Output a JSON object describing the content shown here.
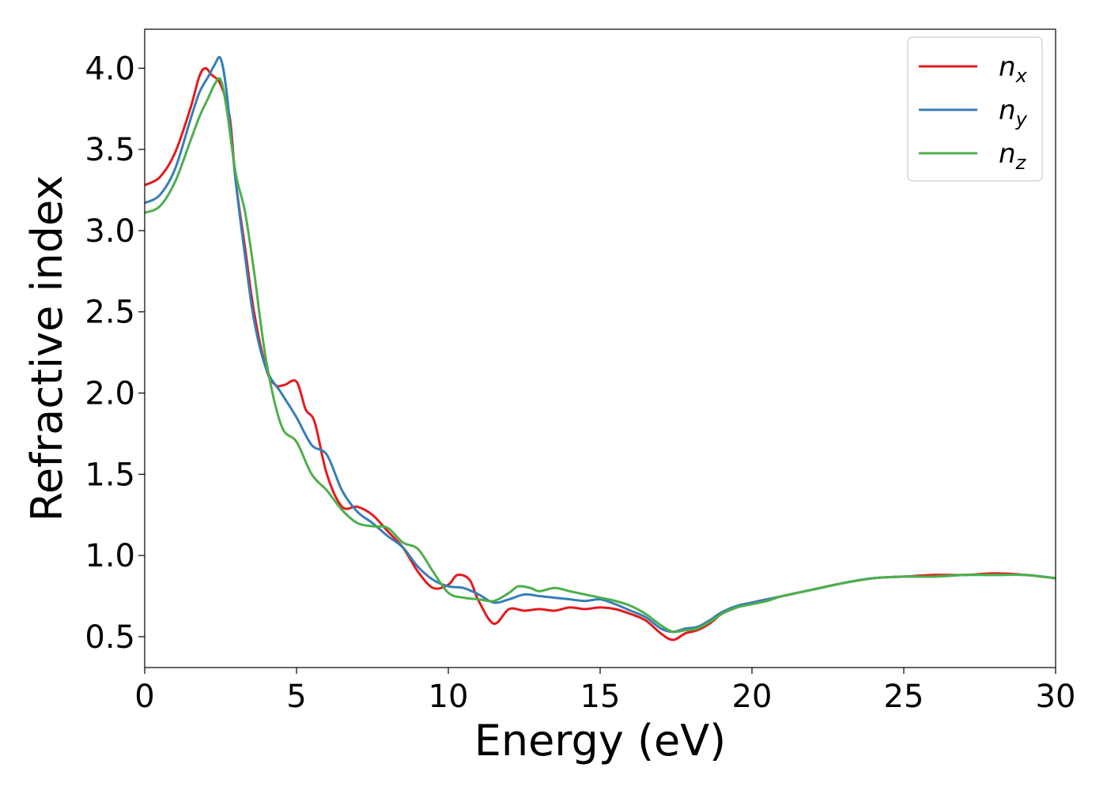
{
  "chart_data": {
    "type": "line",
    "xlabel": "Energy (eV)",
    "ylabel": "Refractive index",
    "xlim": [
      0,
      30
    ],
    "ylim": [
      0.31,
      4.24
    ],
    "xticks": [
      0,
      5,
      10,
      15,
      20,
      25,
      30
    ],
    "xtick_labels": [
      "0",
      "5",
      "10",
      "15",
      "20",
      "25",
      "30"
    ],
    "yticks": [
      0.5,
      1.0,
      1.5,
      2.0,
      2.5,
      3.0,
      3.5,
      4.0
    ],
    "ytick_labels": [
      "0.5",
      "1.0",
      "1.5",
      "2.0",
      "2.5",
      "3.0",
      "3.5",
      "4.0"
    ],
    "grid": false,
    "legend_position": "top-right",
    "series": [
      {
        "name": "n_x",
        "label_base": "n",
        "label_sub": "x",
        "color": "#e41a1c",
        "x": [
          0,
          0.5,
          1.0,
          1.5,
          1.8,
          2.0,
          2.2,
          2.5,
          2.8,
          3.0,
          3.3,
          3.6,
          4.0,
          4.3,
          4.6,
          5.0,
          5.3,
          5.6,
          6.0,
          6.5,
          7.0,
          7.5,
          8.0,
          8.5,
          9.0,
          9.5,
          10.0,
          10.3,
          10.7,
          11.0,
          11.5,
          12.0,
          12.5,
          13.0,
          13.5,
          14.0,
          14.5,
          15.0,
          15.5,
          16.0,
          16.5,
          17.0,
          17.4,
          17.8,
          18.2,
          18.6,
          19.0,
          19.5,
          20.0,
          20.5,
          21.0,
          22.0,
          23.0,
          24.0,
          25.0,
          26.0,
          27.0,
          28.0,
          29.0,
          30.0
        ],
        "y": [
          3.28,
          3.33,
          3.48,
          3.75,
          3.95,
          4.0,
          3.96,
          3.9,
          3.7,
          3.3,
          2.9,
          2.5,
          2.15,
          2.05,
          2.05,
          2.07,
          1.9,
          1.82,
          1.5,
          1.3,
          1.3,
          1.25,
          1.15,
          1.05,
          0.9,
          0.8,
          0.82,
          0.88,
          0.85,
          0.72,
          0.58,
          0.67,
          0.66,
          0.67,
          0.66,
          0.68,
          0.67,
          0.68,
          0.67,
          0.64,
          0.6,
          0.52,
          0.48,
          0.52,
          0.54,
          0.58,
          0.64,
          0.68,
          0.71,
          0.73,
          0.75,
          0.79,
          0.83,
          0.86,
          0.87,
          0.88,
          0.88,
          0.89,
          0.88,
          0.86
        ]
      },
      {
        "name": "n_y",
        "label_base": "n",
        "label_sub": "y",
        "color": "#377eb8",
        "x": [
          0,
          0.5,
          1.0,
          1.5,
          1.8,
          2.1,
          2.3,
          2.5,
          2.7,
          3.0,
          3.3,
          3.6,
          4.0,
          4.5,
          5.0,
          5.5,
          6.0,
          6.5,
          7.0,
          7.5,
          8.0,
          8.5,
          9.0,
          9.5,
          10.0,
          10.5,
          11.0,
          11.5,
          12.0,
          12.5,
          13.0,
          13.5,
          14.0,
          14.5,
          15.0,
          15.5,
          16.0,
          16.5,
          17.0,
          17.4,
          17.8,
          18.2,
          18.6,
          19.0,
          19.5,
          20.0,
          20.5,
          21.0,
          22.0,
          23.0,
          24.0,
          25.0,
          26.0,
          27.0,
          28.0,
          29.0,
          30.0
        ],
        "y": [
          3.17,
          3.22,
          3.38,
          3.68,
          3.85,
          3.95,
          4.02,
          4.06,
          3.85,
          3.3,
          2.85,
          2.45,
          2.15,
          2.0,
          1.85,
          1.68,
          1.62,
          1.4,
          1.27,
          1.2,
          1.12,
          1.05,
          0.93,
          0.85,
          0.81,
          0.8,
          0.76,
          0.71,
          0.73,
          0.76,
          0.75,
          0.74,
          0.73,
          0.72,
          0.73,
          0.7,
          0.66,
          0.62,
          0.55,
          0.53,
          0.55,
          0.56,
          0.6,
          0.65,
          0.69,
          0.71,
          0.73,
          0.75,
          0.79,
          0.83,
          0.86,
          0.87,
          0.87,
          0.88,
          0.88,
          0.88,
          0.86
        ]
      },
      {
        "name": "n_z",
        "label_base": "n",
        "label_sub": "z",
        "color": "#4daf4a",
        "x": [
          0,
          0.5,
          1.0,
          1.5,
          1.8,
          2.1,
          2.3,
          2.5,
          2.7,
          3.0,
          3.3,
          3.6,
          4.0,
          4.5,
          5.0,
          5.5,
          6.0,
          6.5,
          7.0,
          7.5,
          8.0,
          8.5,
          9.0,
          9.5,
          10.0,
          10.5,
          11.0,
          11.5,
          12.0,
          12.3,
          12.7,
          13.0,
          13.5,
          14.0,
          14.5,
          15.0,
          15.5,
          16.0,
          16.5,
          17.0,
          17.4,
          17.8,
          18.2,
          18.6,
          19.0,
          19.5,
          20.0,
          20.5,
          21.0,
          22.0,
          23.0,
          24.0,
          25.0,
          26.0,
          27.0,
          28.0,
          29.0,
          30.0
        ],
        "y": [
          3.11,
          3.15,
          3.3,
          3.55,
          3.7,
          3.82,
          3.9,
          3.93,
          3.75,
          3.35,
          3.12,
          2.75,
          2.2,
          1.8,
          1.7,
          1.5,
          1.4,
          1.28,
          1.2,
          1.18,
          1.17,
          1.08,
          1.04,
          0.9,
          0.77,
          0.74,
          0.73,
          0.72,
          0.77,
          0.81,
          0.8,
          0.78,
          0.8,
          0.78,
          0.76,
          0.74,
          0.72,
          0.69,
          0.64,
          0.57,
          0.53,
          0.54,
          0.55,
          0.59,
          0.64,
          0.68,
          0.7,
          0.72,
          0.75,
          0.79,
          0.83,
          0.86,
          0.87,
          0.87,
          0.88,
          0.88,
          0.88,
          0.86
        ]
      }
    ]
  }
}
